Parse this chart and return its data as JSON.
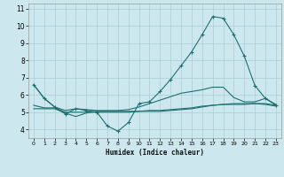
{
  "xlabel": "Humidex (Indice chaleur)",
  "bg_color": "#cce8ee",
  "grid_color": "#aacdd4",
  "line_color": "#1e7070",
  "xlim": [
    -0.5,
    23.5
  ],
  "ylim": [
    3.5,
    11.3
  ],
  "yticks": [
    4,
    5,
    6,
    7,
    8,
    9,
    10,
    11
  ],
  "xticks": [
    0,
    1,
    2,
    3,
    4,
    5,
    6,
    7,
    8,
    9,
    10,
    11,
    12,
    13,
    14,
    15,
    16,
    17,
    18,
    19,
    20,
    21,
    22,
    23
  ],
  "series": [
    {
      "x": [
        0,
        1,
        2,
        3,
        4,
        5,
        6,
        7,
        8,
        9,
        10,
        11,
        12,
        13,
        14,
        15,
        16,
        17,
        18,
        19,
        20,
        21,
        22,
        23
      ],
      "y": [
        6.6,
        5.8,
        5.3,
        4.9,
        5.2,
        5.1,
        5.0,
        4.2,
        3.9,
        4.4,
        5.5,
        5.6,
        6.2,
        6.9,
        7.7,
        8.5,
        9.5,
        10.55,
        10.45,
        9.5,
        8.25,
        6.55,
        5.8,
        5.4
      ],
      "marker": true
    },
    {
      "x": [
        0,
        1,
        2,
        3,
        4,
        5,
        6,
        7,
        8,
        9,
        10,
        11,
        12,
        13,
        14,
        15,
        16,
        17,
        18,
        19,
        20,
        21,
        22,
        23
      ],
      "y": [
        6.6,
        5.8,
        5.3,
        5.1,
        5.2,
        5.15,
        5.1,
        5.1,
        5.1,
        5.15,
        5.3,
        5.5,
        5.7,
        5.9,
        6.1,
        6.2,
        6.3,
        6.45,
        6.45,
        5.85,
        5.6,
        5.6,
        5.8,
        5.45
      ],
      "marker": false
    },
    {
      "x": [
        0,
        1,
        2,
        3,
        4,
        5,
        6,
        7,
        8,
        9,
        10,
        11,
        12,
        13,
        14,
        15,
        16,
        17,
        18,
        19,
        20,
        21,
        22,
        23
      ],
      "y": [
        5.4,
        5.25,
        5.25,
        5.0,
        5.0,
        5.0,
        5.0,
        5.0,
        5.0,
        5.0,
        5.05,
        5.1,
        5.1,
        5.15,
        5.2,
        5.25,
        5.35,
        5.4,
        5.45,
        5.5,
        5.5,
        5.5,
        5.5,
        5.4
      ],
      "marker": false
    },
    {
      "x": [
        0,
        1,
        2,
        3,
        4,
        5,
        6,
        7,
        8,
        9,
        10,
        11,
        12,
        13,
        14,
        15,
        16,
        17,
        18,
        19,
        20,
        21,
        22,
        23
      ],
      "y": [
        5.2,
        5.2,
        5.2,
        4.95,
        4.75,
        4.95,
        5.05,
        5.05,
        5.05,
        5.05,
        5.05,
        5.05,
        5.05,
        5.1,
        5.15,
        5.2,
        5.3,
        5.4,
        5.45,
        5.45,
        5.45,
        5.5,
        5.45,
        5.35
      ],
      "marker": false
    }
  ]
}
